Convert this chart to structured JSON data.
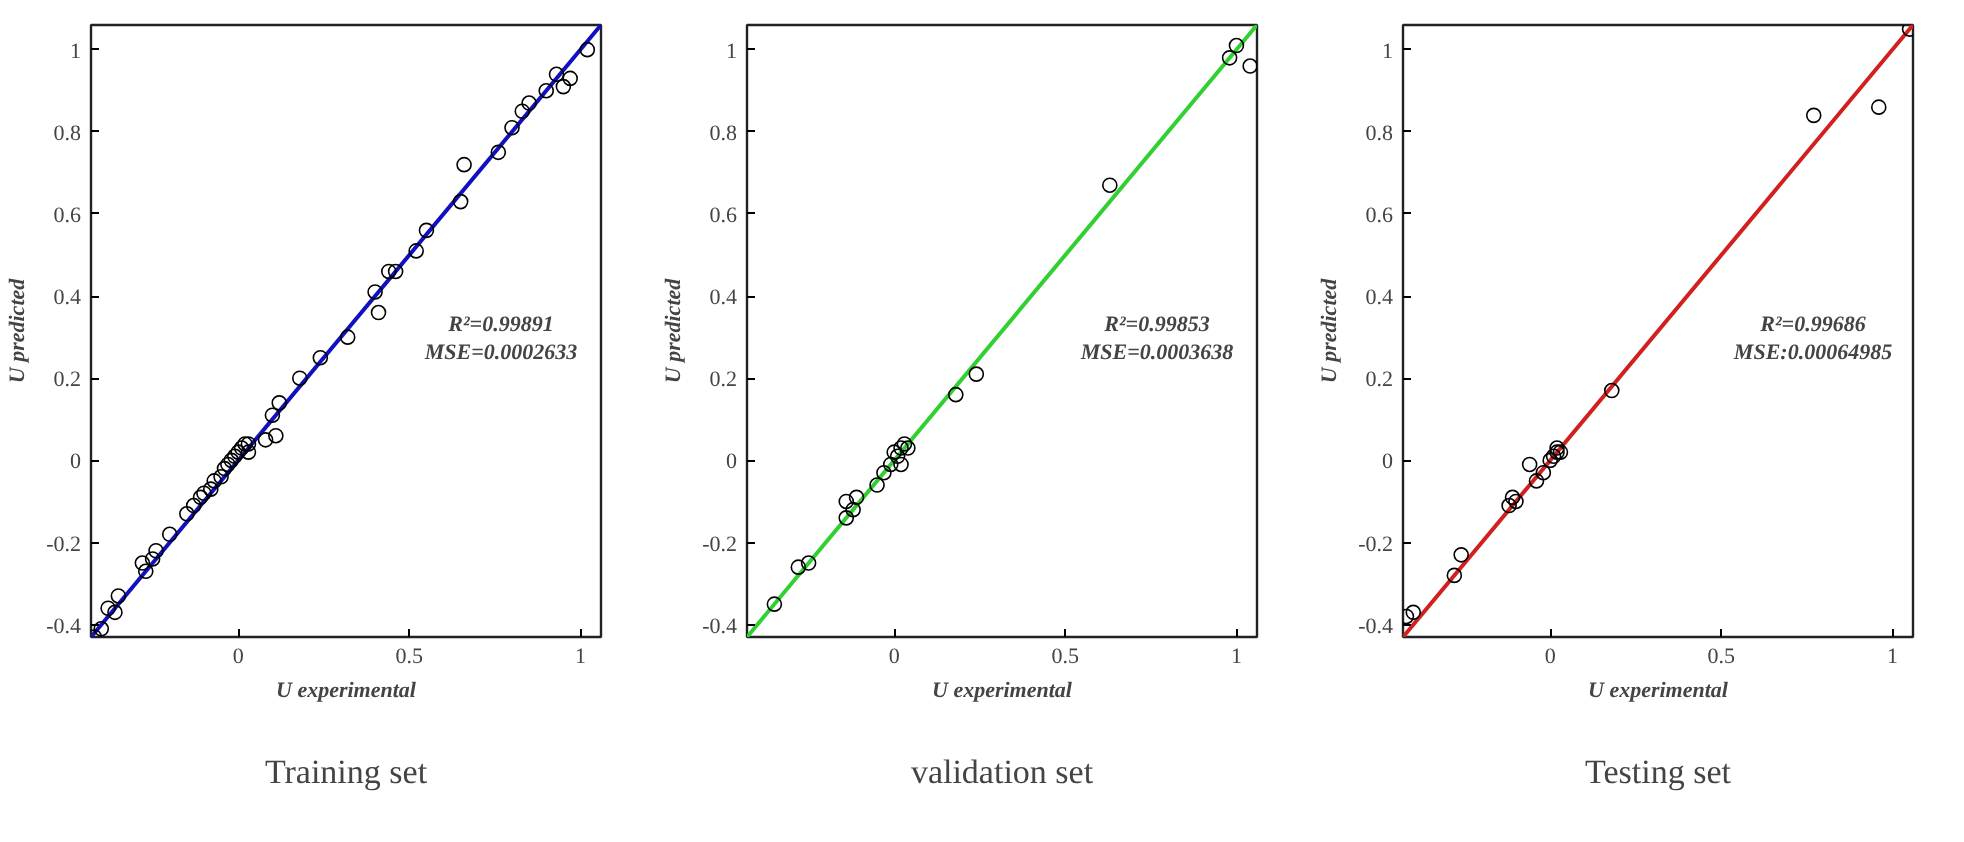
{
  "chart_data": [
    {
      "type": "scatter",
      "title": "Training set",
      "xlabel": "U experimental",
      "ylabel": "U predicted",
      "xlim": [
        -0.43,
        1.06
      ],
      "ylim": [
        -0.43,
        1.06
      ],
      "xticks": [
        0,
        0.5,
        1
      ],
      "yticks": [
        -0.4,
        -0.2,
        0,
        0.2,
        0.4,
        0.6,
        0.8,
        1
      ],
      "grid": false,
      "annotations": [
        "R²=0.99891",
        "MSE=0.0002633"
      ],
      "series": [
        {
          "marker": "circle",
          "color": "#000000",
          "x": [
            -0.42,
            -0.4,
            -0.38,
            -0.36,
            -0.35,
            -0.28,
            -0.27,
            -0.25,
            -0.24,
            -0.2,
            -0.15,
            -0.13,
            -0.11,
            -0.1,
            -0.08,
            -0.07,
            -0.05,
            -0.04,
            -0.03,
            -0.02,
            -0.01,
            0,
            0.01,
            0.02,
            0.03,
            0.03,
            0.08,
            0.1,
            0.11,
            0.12,
            0.18,
            0.24,
            0.32,
            0.4,
            0.41,
            0.44,
            0.46,
            0.52,
            0.55,
            0.65,
            0.66,
            0.76,
            0.8,
            0.83,
            0.85,
            0.9,
            0.93,
            0.95,
            0.97,
            1.02
          ],
          "values": [
            -0.43,
            -0.41,
            -0.36,
            -0.37,
            -0.33,
            -0.25,
            -0.27,
            -0.24,
            -0.22,
            -0.18,
            -0.13,
            -0.11,
            -0.09,
            -0.08,
            -0.07,
            -0.05,
            -0.04,
            -0.02,
            -0.01,
            0,
            0.01,
            0.02,
            0.03,
            0.04,
            0.02,
            0.04,
            0.05,
            0.11,
            0.06,
            0.14,
            0.2,
            0.25,
            0.3,
            0.41,
            0.36,
            0.46,
            0.46,
            0.51,
            0.56,
            0.63,
            0.72,
            0.75,
            0.81,
            0.85,
            0.87,
            0.9,
            0.94,
            0.91,
            0.93,
            1.0
          ]
        },
        {
          "type": "line",
          "color": "#1010c0",
          "x": [
            -0.43,
            1.06
          ],
          "values": [
            -0.43,
            1.06
          ]
        }
      ]
    },
    {
      "type": "scatter",
      "title": "validation set",
      "xlabel": "U experimental",
      "ylabel": "U predicted",
      "xlim": [
        -0.43,
        1.06
      ],
      "ylim": [
        -0.43,
        1.06
      ],
      "xticks": [
        0,
        0.5,
        1
      ],
      "yticks": [
        -0.4,
        -0.2,
        0,
        0.2,
        0.4,
        0.6,
        0.8,
        1
      ],
      "grid": false,
      "annotations": [
        "R²=0.99853",
        "MSE=0.0003638"
      ],
      "series": [
        {
          "marker": "circle",
          "color": "#000000",
          "x": [
            -0.35,
            -0.28,
            -0.25,
            -0.14,
            -0.14,
            -0.12,
            -0.11,
            -0.05,
            -0.03,
            -0.01,
            0,
            0.01,
            0.02,
            0.02,
            0.03,
            0.04,
            0.18,
            0.24,
            0.63,
            0.98,
            1.0,
            1.04
          ],
          "values": [
            -0.35,
            -0.26,
            -0.25,
            -0.1,
            -0.14,
            -0.12,
            -0.09,
            -0.06,
            -0.03,
            -0.01,
            0.02,
            0.01,
            -0.01,
            0.03,
            0.04,
            0.03,
            0.16,
            0.21,
            0.67,
            0.98,
            1.01,
            0.96
          ]
        },
        {
          "type": "line",
          "color": "#30d030",
          "x": [
            -0.43,
            1.06
          ],
          "values": [
            -0.43,
            1.06
          ]
        }
      ]
    },
    {
      "type": "scatter",
      "title": "Testing set",
      "xlabel": "U experimental",
      "ylabel": "U predicted",
      "xlim": [
        -0.43,
        1.06
      ],
      "ylim": [
        -0.43,
        1.06
      ],
      "xticks": [
        0,
        0.5,
        1
      ],
      "yticks": [
        -0.4,
        -0.2,
        0,
        0.2,
        0.4,
        0.6,
        0.8,
        1
      ],
      "grid": false,
      "annotations": [
        "R²=0.99686",
        "MSE:0.00064985"
      ],
      "series": [
        {
          "marker": "circle",
          "color": "#000000",
          "x": [
            -0.42,
            -0.4,
            -0.28,
            -0.26,
            -0.12,
            -0.11,
            -0.1,
            -0.06,
            -0.04,
            -0.02,
            0,
            0.01,
            0.02,
            0.02,
            0.03,
            0.18,
            0.77,
            0.96,
            1.05
          ],
          "values": [
            -0.38,
            -0.37,
            -0.28,
            -0.23,
            -0.11,
            -0.09,
            -0.1,
            -0.01,
            -0.05,
            -0.03,
            0,
            0.01,
            0.02,
            0.03,
            0.02,
            0.17,
            0.84,
            0.86,
            1.05
          ]
        },
        {
          "type": "line",
          "color": "#d02020",
          "x": [
            -0.43,
            1.06
          ],
          "values": [
            -0.43,
            1.06
          ]
        }
      ]
    }
  ]
}
